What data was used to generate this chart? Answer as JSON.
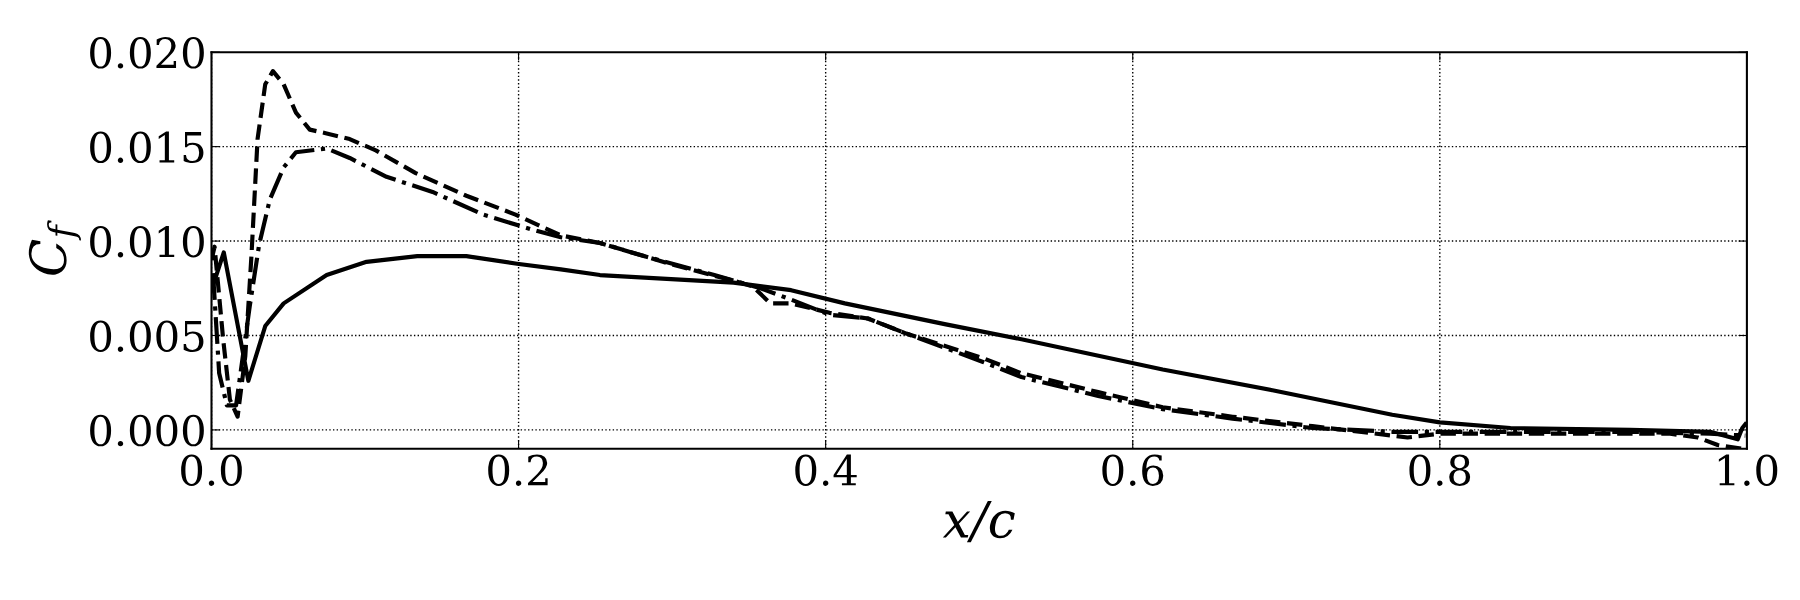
{
  "chart_data": {
    "type": "line",
    "xlabel": "x/c",
    "ylabel": "C$_{f}$",
    "xlim": [
      0,
      1
    ],
    "ylim": [
      -0.001,
      0.02
    ],
    "xticks": [
      {
        "value": 0,
        "label": "0.0"
      },
      {
        "value": 0.2,
        "label": "0.2"
      },
      {
        "value": 0.4,
        "label": "0.4"
      },
      {
        "value": 0.6,
        "label": "0.6"
      },
      {
        "value": 0.8,
        "label": "0.8"
      },
      {
        "value": 1.0,
        "label": "1.0"
      }
    ],
    "yticks": [
      {
        "value": 0,
        "label": "0.000"
      },
      {
        "value": 0.005,
        "label": "0.005"
      },
      {
        "value": 0.01,
        "label": "0.010"
      },
      {
        "value": 0.015,
        "label": "0.015"
      },
      {
        "value": 0.02,
        "label": "0.020"
      }
    ],
    "grid": true,
    "series": [
      {
        "color": "#000000",
        "line_style": "solid",
        "x": [
          0.0,
          0.008,
          0.024,
          0.035,
          0.047,
          0.075,
          0.101,
          0.134,
          0.166,
          0.199,
          0.2275,
          0.253,
          0.34,
          0.3775,
          0.4125,
          0.4775,
          0.5275,
          0.6195,
          0.691,
          0.769,
          0.8,
          0.846,
          0.924,
          0.976,
          0.994,
          0.997,
          0.999
        ],
        "values": [
          0.0074,
          0.0094,
          0.0026,
          0.0055,
          0.0067,
          0.0082,
          0.0089,
          0.0092,
          0.0092,
          0.0088,
          0.0085,
          0.0082,
          0.0078,
          0.0074,
          0.0067,
          0.0056,
          0.0048,
          0.0032,
          0.0021,
          0.0008,
          0.0004,
          0.0001,
          0.0,
          -0.0001,
          -0.0005,
          0.0001,
          0.0003
        ]
      },
      {
        "color": "#000000",
        "line_style": "dashed",
        "x": [
          0.0,
          0.002,
          0.0076,
          0.012,
          0.017,
          0.022,
          0.026,
          0.03,
          0.035,
          0.04,
          0.047,
          0.055,
          0.064,
          0.075,
          0.09,
          0.107,
          0.133,
          0.166,
          0.198,
          0.2275,
          0.253,
          0.3025,
          0.34,
          0.3525,
          0.364,
          0.3775,
          0.4025,
          0.4275,
          0.4525,
          0.5025,
          0.5275,
          0.5775,
          0.6195,
          0.665,
          0.717,
          0.779,
          0.8,
          0.872,
          0.95,
          0.968,
          0.981,
          0.997
        ],
        "values": [
          0.009,
          0.0097,
          0.0048,
          0.0016,
          0.0007,
          0.0039,
          0.0092,
          0.0154,
          0.0183,
          0.019,
          0.0183,
          0.0168,
          0.0159,
          0.0157,
          0.0154,
          0.0148,
          0.0136,
          0.0124,
          0.0114,
          0.0103,
          0.0099,
          0.0087,
          0.0079,
          0.0076,
          0.0067,
          0.0067,
          0.0062,
          0.0059,
          0.0051,
          0.0038,
          0.003,
          0.002,
          0.0012,
          0.0007,
          0.0002,
          -0.0004,
          -0.0002,
          -0.0002,
          -0.0002,
          -0.0004,
          -0.0008,
          -0.001
        ]
      },
      {
        "color": "#000000",
        "line_style": "dashdot",
        "x": [
          0.001,
          0.005,
          0.01,
          0.016,
          0.025,
          0.031,
          0.038,
          0.047,
          0.055,
          0.075,
          0.09,
          0.114,
          0.144,
          0.177,
          0.209,
          0.2275,
          0.253,
          0.2775,
          0.3275,
          0.3575,
          0.3775,
          0.4025,
          0.4275,
          0.4525,
          0.5025,
          0.5275,
          0.5775,
          0.6195,
          0.665,
          0.717,
          0.769,
          0.846,
          0.924,
          0.976,
          0.999
        ],
        "values": [
          0.0083,
          0.003,
          0.0013,
          0.0013,
          0.0066,
          0.0098,
          0.0122,
          0.0139,
          0.0147,
          0.0149,
          0.0144,
          0.0134,
          0.0126,
          0.0114,
          0.0106,
          0.0102,
          0.0099,
          0.0093,
          0.0082,
          0.0075,
          0.0069,
          0.0061,
          0.0059,
          0.0051,
          0.0036,
          0.0028,
          0.0018,
          0.0011,
          0.0006,
          0.0001,
          -0.0001,
          -0.0001,
          -0.0001,
          -0.0002,
          -0.0003
        ]
      }
    ]
  }
}
